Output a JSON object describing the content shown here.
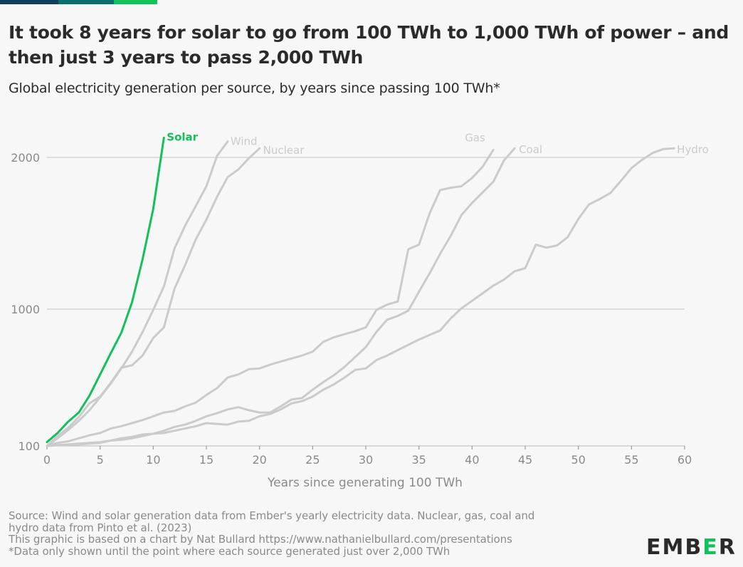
{
  "brand": {
    "bar_colors": [
      "#153e5c",
      "#0c6e6a",
      "#13c15b"
    ],
    "logo_parts": [
      "EMB",
      "E",
      "R"
    ],
    "logo_accent": "#13c15b"
  },
  "header": {
    "title": "It took 8 years for solar to go from 100 TWh to 1,000 TWh of power – and then just 3 years to pass 2,000 TWh",
    "subtitle": "Global electricity generation per source, by years since passing 100 TWh*"
  },
  "footer": {
    "lines": [
      "Source: Wind and solar generation data from Ember's yearly electricity data. Nuclear, gas, coal and",
      "hydro data from Pinto et al. (2023)",
      "This graphic is based on a chart by Nat Bullard https://www.nathanielbullard.com/presentations",
      "*Data only shown until the point where each source generated just over 2,000 TWh"
    ]
  },
  "chart_data": {
    "type": "line",
    "title": "It took 8 years for solar to go from 100 TWh to 1,000 TWh of power – and then just 3 years to pass 2,000 TWh",
    "subtitle": "Global electricity generation per source, by years since passing 100 TWh*",
    "xlabel": "Years since generating 100 TWh",
    "ylabel": "",
    "xlim": [
      0,
      60
    ],
    "xticks": [
      0,
      5,
      10,
      15,
      20,
      25,
      30,
      35,
      40,
      45,
      50,
      55,
      60
    ],
    "ylim": [
      100,
      2200
    ],
    "yticks": [
      100,
      1000,
      2000
    ],
    "grid": "horizontal",
    "highlight_color": "#13c15b",
    "muted_color": "#cbcbcb",
    "series": [
      {
        "name": "Solar",
        "highlight": true,
        "values": [
          125,
          185,
          260,
          320,
          430,
          570,
          710,
          845,
          1045,
          1330,
          1660,
          2130
        ]
      },
      {
        "name": "Wind",
        "highlight": false,
        "values": [
          100,
          150,
          205,
          265,
          335,
          420,
          510,
          610,
          720,
          850,
          995,
          1150,
          1400,
          1550,
          1680,
          1810,
          2010,
          2105
        ]
      },
      {
        "name": "Nuclear",
        "highlight": false,
        "values": [
          100,
          165,
          220,
          290,
          380,
          425,
          515,
          615,
          630,
          695,
          810,
          880,
          1135,
          1290,
          1460,
          1590,
          1740,
          1870,
          1920,
          1995,
          2060
        ]
      },
      {
        "name": "Gas",
        "highlight": false,
        "values": [
          100,
          120,
          130,
          150,
          170,
          185,
          215,
          230,
          250,
          270,
          295,
          320,
          330,
          360,
          385,
          435,
          480,
          550,
          570,
          605,
          610,
          635,
          655,
          675,
          695,
          720,
          785,
          815,
          835,
          855,
          880,
          995,
          1030,
          1050,
          1395,
          1425,
          1630,
          1785,
          1800,
          1810,
          1865,
          1940,
          2050
        ]
      },
      {
        "name": "Coal",
        "highlight": false,
        "values": [
          100,
          105,
          105,
          110,
          115,
          120,
          135,
          150,
          160,
          175,
          180,
          200,
          225,
          240,
          265,
          295,
          315,
          340,
          355,
          335,
          320,
          320,
          360,
          405,
          415,
          470,
          520,
          565,
          620,
          685,
          750,
          850,
          930,
          955,
          990,
          1115,
          1235,
          1365,
          1485,
          1620,
          1700,
          1770,
          1840,
          1980,
          2060
        ]
      },
      {
        "name": "Hydro",
        "highlight": false,
        "values": [
          100,
          105,
          110,
          115,
          120,
          125,
          135,
          140,
          150,
          165,
          180,
          185,
          200,
          215,
          230,
          250,
          245,
          240,
          260,
          265,
          295,
          310,
          340,
          380,
          395,
          425,
          470,
          505,
          550,
          600,
          610,
          665,
          695,
          730,
          765,
          800,
          830,
          860,
          940,
          1005,
          1055,
          1105,
          1155,
          1195,
          1250,
          1270,
          1425,
          1405,
          1420,
          1475,
          1595,
          1690,
          1725,
          1765,
          1845,
          1930,
          1985,
          2030,
          2055,
          2060
        ]
      }
    ]
  }
}
